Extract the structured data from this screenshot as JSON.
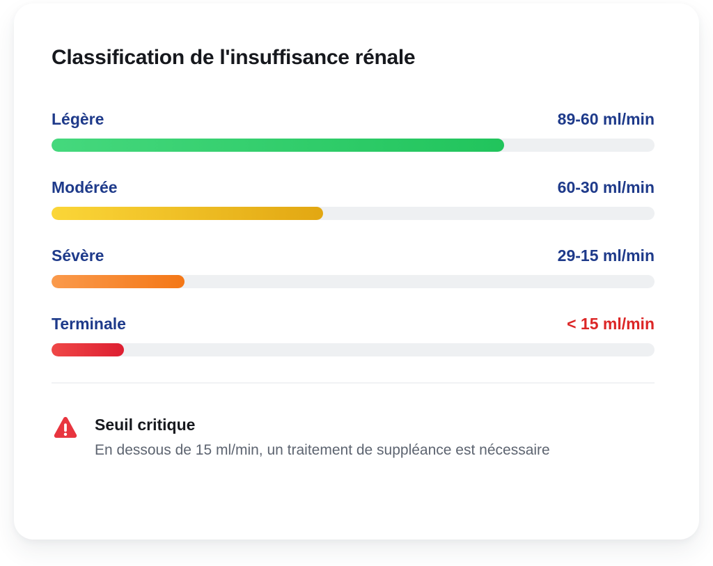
{
  "card": {
    "title": "Classification de l'insuffisance rénale",
    "rows": [
      {
        "label": "Légère",
        "value": "89-60 ml/min",
        "percent": 75,
        "gradient_start": "#45d87d",
        "gradient_end": "#21c45c",
        "value_color": "#1e3a8a"
      },
      {
        "label": "Modérée",
        "value": "60-30 ml/min",
        "percent": 45,
        "gradient_start": "#fbd638",
        "gradient_end": "#e2a712",
        "value_color": "#1e3a8a"
      },
      {
        "label": "Sévère",
        "value": "29-15 ml/min",
        "percent": 22,
        "gradient_start": "#fa9a4c",
        "gradient_end": "#f47716",
        "value_color": "#1e3a8a"
      },
      {
        "label": "Terminale",
        "value": "< 15 ml/min",
        "percent": 12,
        "gradient_start": "#ef4747",
        "gradient_end": "#dd1f31",
        "value_color": "#dc2626"
      }
    ],
    "alert": {
      "icon": "warning-triangle-icon",
      "icon_color": "#e8353f",
      "title": "Seuil critique",
      "description": "En dessous de 15 ml/min, un traitement de suppléance est nécessaire"
    },
    "colors": {
      "label_blue": "#1e3a8a",
      "value_red": "#dc2626",
      "track_gray": "#eef0f2",
      "title_dark": "#16181d",
      "description_gray": "#5d6470"
    }
  },
  "chart_data": {
    "type": "bar",
    "title": "Classification de l'insuffisance rénale",
    "categories": [
      "Légère",
      "Modérée",
      "Sévère",
      "Terminale"
    ],
    "value_labels": [
      "89-60 ml/min",
      "60-30 ml/min",
      "29-15 ml/min",
      "< 15 ml/min"
    ],
    "bar_fill_percent": [
      75,
      45,
      22,
      12
    ],
    "bar_colors": [
      "green",
      "yellow",
      "orange",
      "red"
    ],
    "annotations": [
      "Seuil critique — En dessous de 15 ml/min, un traitement de suppléance est nécessaire"
    ],
    "legend": false,
    "grid": false
  }
}
